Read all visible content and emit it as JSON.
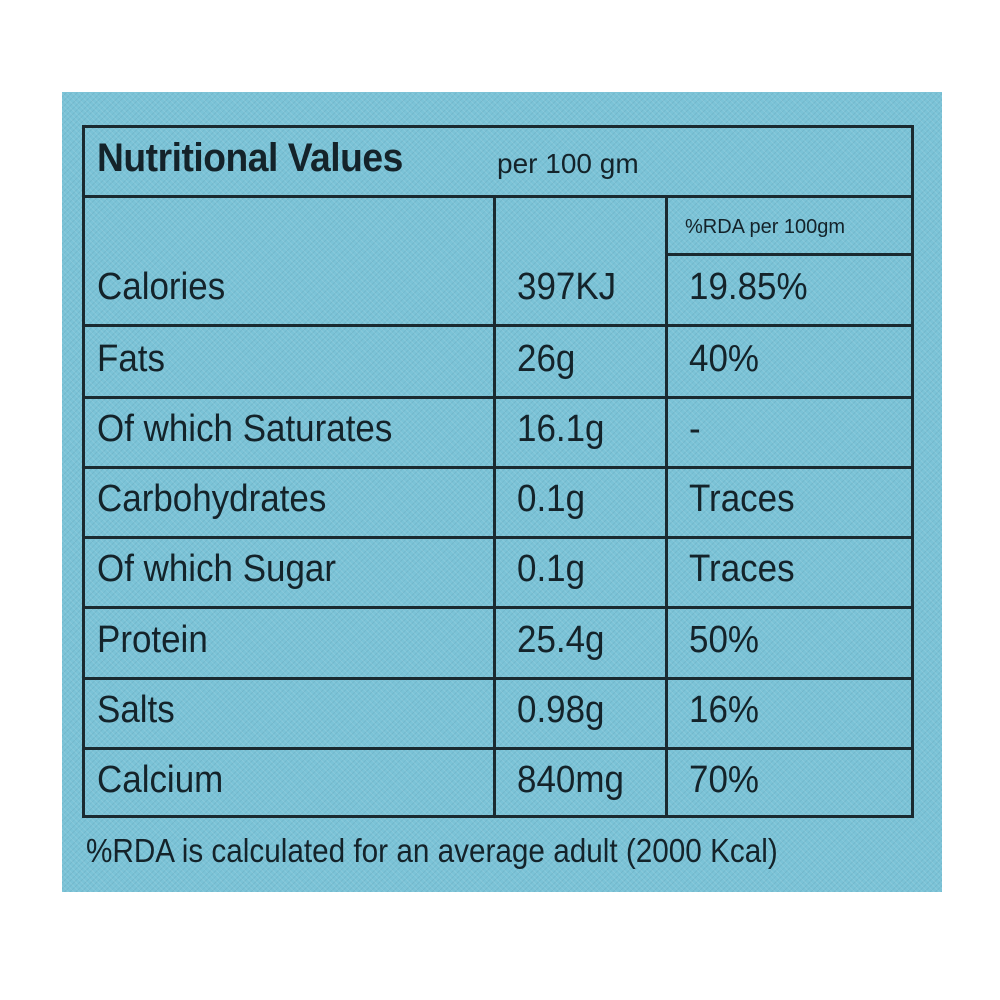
{
  "panel": {
    "background_color": "#7bc3d7",
    "ink_color": "#14232a"
  },
  "title": {
    "main": "Nutritional Values",
    "sub": "per 100 gm"
  },
  "rda_header": "%RDA per 100gm",
  "rows": [
    {
      "name": "Calories",
      "amount": "397KJ",
      "rda": "19.85%"
    },
    {
      "name": "Fats",
      "amount": "26g",
      "rda": "40%"
    },
    {
      "name": "Of which Saturates",
      "amount": "16.1g",
      "rda": "-"
    },
    {
      "name": "Carbohydrates",
      "amount": "0.1g",
      "rda": "Traces"
    },
    {
      "name": "Of which Sugar",
      "amount": "0.1g",
      "rda": "Traces"
    },
    {
      "name": "Protein",
      "amount": "25.4g",
      "rda": "50%"
    },
    {
      "name": "Salts",
      "amount": "0.98g",
      "rda": "16%"
    },
    {
      "name": "Calcium",
      "amount": "840mg",
      "rda": "70%"
    }
  ],
  "footnote": "%RDA is calculated for an average adult (2000 Kcal)"
}
